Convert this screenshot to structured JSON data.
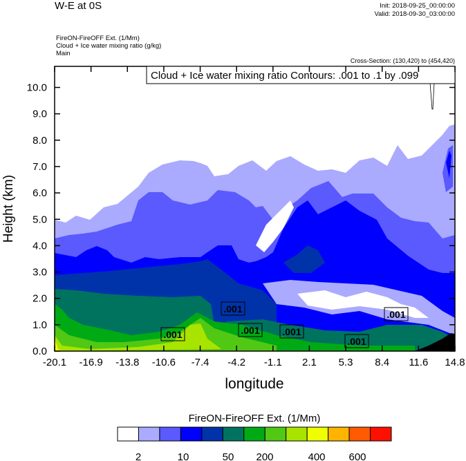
{
  "header": {
    "title": "W-E at 0S",
    "init": "Init: 2018-09-25_00:00:00",
    "valid": "Valid: 2018-09-30_03:00:00",
    "subtitles": [
      "FireON-FireOFF Ext.   (1/Mm)",
      "Cloud + Ice water mixing ratio   (g/kg)",
      "Main"
    ],
    "cross_section": "Cross-Section: (130,420) to (454,420)"
  },
  "chart_data": {
    "type": "heatmap",
    "title": "W-E at 0S",
    "xlabel": "longitude",
    "ylabel": "Height (km)",
    "xlim": [
      -20.1,
      14.8
    ],
    "ylim": [
      0.0,
      10.8
    ],
    "x_ticks": [
      "-20.1",
      "-16.9",
      "-13.8",
      "-10.6",
      "-7.4",
      "-4.2",
      "-1.1",
      "2.1",
      "5.3",
      "8.4",
      "11.6",
      "14.8"
    ],
    "y_ticks": [
      "0.0",
      "1.0",
      "2.0",
      "3.0",
      "4.0",
      "5.0",
      "6.0",
      "7.0",
      "8.0",
      "9.0",
      "10.0"
    ],
    "shaded_field": "FireON-FireOFF Ext.  (1/Mm)",
    "contour_field": "Cloud + Ice water mixing ratio Contours: .001 to .1 by .099",
    "contour_labels": [
      ".001",
      ".001",
      ".001",
      ".001",
      ".001",
      ".001"
    ],
    "colorbar": {
      "title": "FireON-FireOFF Ext.  (1/Mm)",
      "colors": [
        "#ffffff",
        "#aaaaff",
        "#5a5aff",
        "#0000ff",
        "#0033aa",
        "#00735f",
        "#00aa14",
        "#50c814",
        "#a8e400",
        "#f0ff00",
        "#ffb400",
        "#ff5a00",
        "#ff0f00"
      ],
      "labels": [
        "2",
        "10",
        "50",
        "200",
        "400",
        "600"
      ]
    },
    "grid": false
  }
}
